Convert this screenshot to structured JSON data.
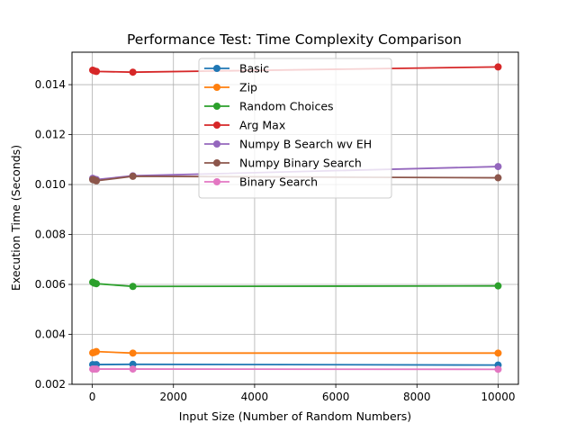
{
  "chart_data": {
    "type": "line",
    "title": "Performance Test: Time Complexity Comparison",
    "xlabel": "Input Size (Number of Random Numbers)",
    "ylabel": "Execution Time (Seconds)",
    "xlim": [
      -500,
      10500
    ],
    "ylim": [
      0.002,
      0.0153
    ],
    "xticks": [
      0,
      2000,
      4000,
      6000,
      8000,
      10000
    ],
    "yticks": [
      0.002,
      0.004,
      0.006,
      0.008,
      0.01,
      0.012,
      0.014
    ],
    "xtick_labels": [
      "0",
      "2000",
      "4000",
      "6000",
      "8000",
      "10000"
    ],
    "ytick_labels": [
      "0.002",
      "0.004",
      "0.006",
      "0.008",
      "0.010",
      "0.012",
      "0.014"
    ],
    "grid": true,
    "legend_position": "top-center",
    "x": [
      10,
      50,
      100,
      1000,
      10000
    ],
    "series": [
      {
        "name": "Basic",
        "color": "#1f77b4",
        "values": [
          0.00279,
          0.00278,
          0.00279,
          0.0028,
          0.00277
        ]
      },
      {
        "name": "Zip",
        "color": "#ff7f0e",
        "values": [
          0.00326,
          0.00328,
          0.00331,
          0.00325,
          0.00325
        ]
      },
      {
        "name": "Random Choices",
        "color": "#2ca02c",
        "values": [
          0.00609,
          0.00605,
          0.00603,
          0.00592,
          0.00594
        ]
      },
      {
        "name": "Arg Max",
        "color": "#d62728",
        "values": [
          0.01458,
          0.01455,
          0.01453,
          0.0145,
          0.01471
        ]
      },
      {
        "name": "Numpy B Search wv EH",
        "color": "#9467bd",
        "values": [
          0.01025,
          0.01022,
          0.0102,
          0.01035,
          0.01072
        ]
      },
      {
        "name": "Numpy Binary Search",
        "color": "#8c564b",
        "values": [
          0.0102,
          0.01018,
          0.01015,
          0.01033,
          0.01027
        ]
      },
      {
        "name": "Binary Search",
        "color": "#e377c2",
        "values": [
          0.00261,
          0.00261,
          0.00261,
          0.00261,
          0.0026
        ]
      }
    ]
  }
}
